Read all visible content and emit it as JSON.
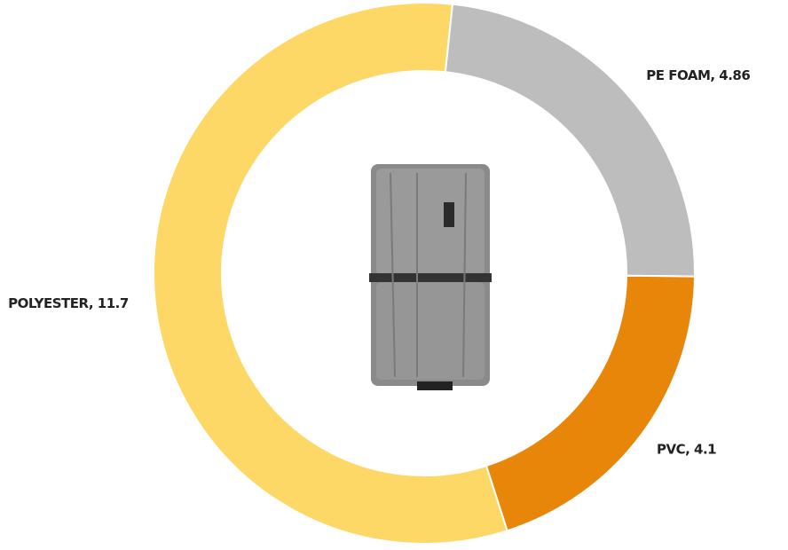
{
  "chart_data": {
    "type": "donut",
    "labels": [
      "PE FOAM, 4.86",
      "PVC, 4.1",
      "POLYESTER, 11.7"
    ],
    "values": [
      4.86,
      4.1,
      11.7
    ],
    "colors": [
      "#bdbdbd",
      "#e8860a",
      "#fdd867"
    ]
  }
}
